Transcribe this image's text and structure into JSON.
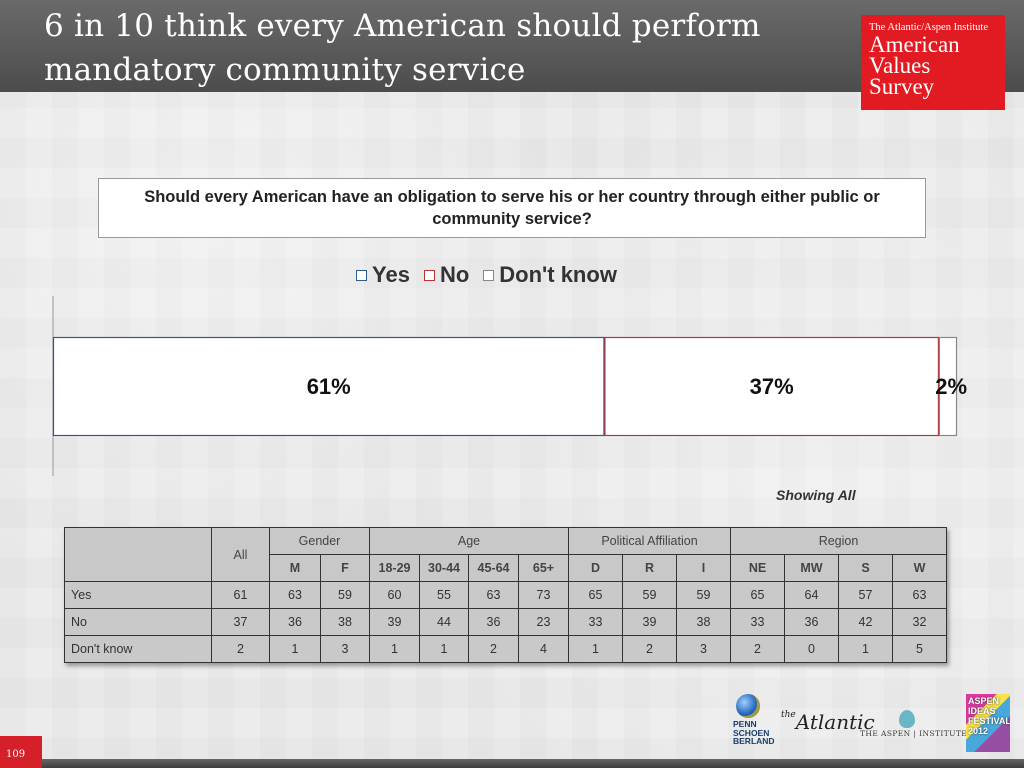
{
  "title": "6 in 10 think every American should perform mandatory community service",
  "logo": {
    "subtitle": "The Atlantic/Aspen Institute",
    "line1": "American",
    "line2": "Values",
    "line3": "Survey"
  },
  "question": "Should every American have an obligation to serve his or her country through either public or community service?",
  "legend": [
    {
      "label": "Yes",
      "color": "#2e5a8e"
    },
    {
      "label": "No",
      "color": "#b8333a"
    },
    {
      "label": "Don't know",
      "color": "#888888"
    }
  ],
  "chart_data": {
    "type": "bar",
    "orientation": "horizontal-stacked",
    "categories": [
      "All"
    ],
    "series": [
      {
        "name": "Yes",
        "values": [
          61
        ],
        "label": "61%",
        "color": "#2e5a8e"
      },
      {
        "name": "No",
        "values": [
          37
        ],
        "label": "37%",
        "color": "#b8333a"
      },
      {
        "name": "Don't know",
        "values": [
          2
        ],
        "label": "2%",
        "color": "#888888"
      }
    ],
    "xlim": [
      0,
      100
    ],
    "title": "Should every American have an obligation to serve his or her country through either public or community service?",
    "legend_position": "top"
  },
  "showing": "Showing All",
  "table": {
    "all_label": "All",
    "groups": [
      "Gender",
      "Age",
      "Political Affiliation",
      "Region"
    ],
    "subheaders": [
      "M",
      "F",
      "18-29",
      "30-44",
      "45-64",
      "65+",
      "D",
      "R",
      "I",
      "NE",
      "MW",
      "S",
      "W"
    ],
    "rows": [
      {
        "label": "Yes",
        "values": [
          "61",
          "63",
          "59",
          "60",
          "55",
          "63",
          "73",
          "65",
          "59",
          "59",
          "65",
          "64",
          "57",
          "63"
        ]
      },
      {
        "label": "No",
        "values": [
          "37",
          "36",
          "38",
          "39",
          "44",
          "36",
          "23",
          "33",
          "39",
          "38",
          "33",
          "36",
          "42",
          "32"
        ]
      },
      {
        "label": "Don't know",
        "values": [
          "2",
          "1",
          "3",
          "1",
          "1",
          "2",
          "4",
          "1",
          "2",
          "3",
          "2",
          "0",
          "1",
          "5"
        ]
      }
    ]
  },
  "page_number": "109",
  "sponsors": {
    "psb": "PENN\nSCHOEN\nBERLAND",
    "atlantic_the": "the",
    "atlantic": "Atlantic",
    "aspen": "THE ASPEN | INSTITUTE",
    "festival": "ASPEN\nIDEAS\nFESTIVAL\n2012"
  }
}
